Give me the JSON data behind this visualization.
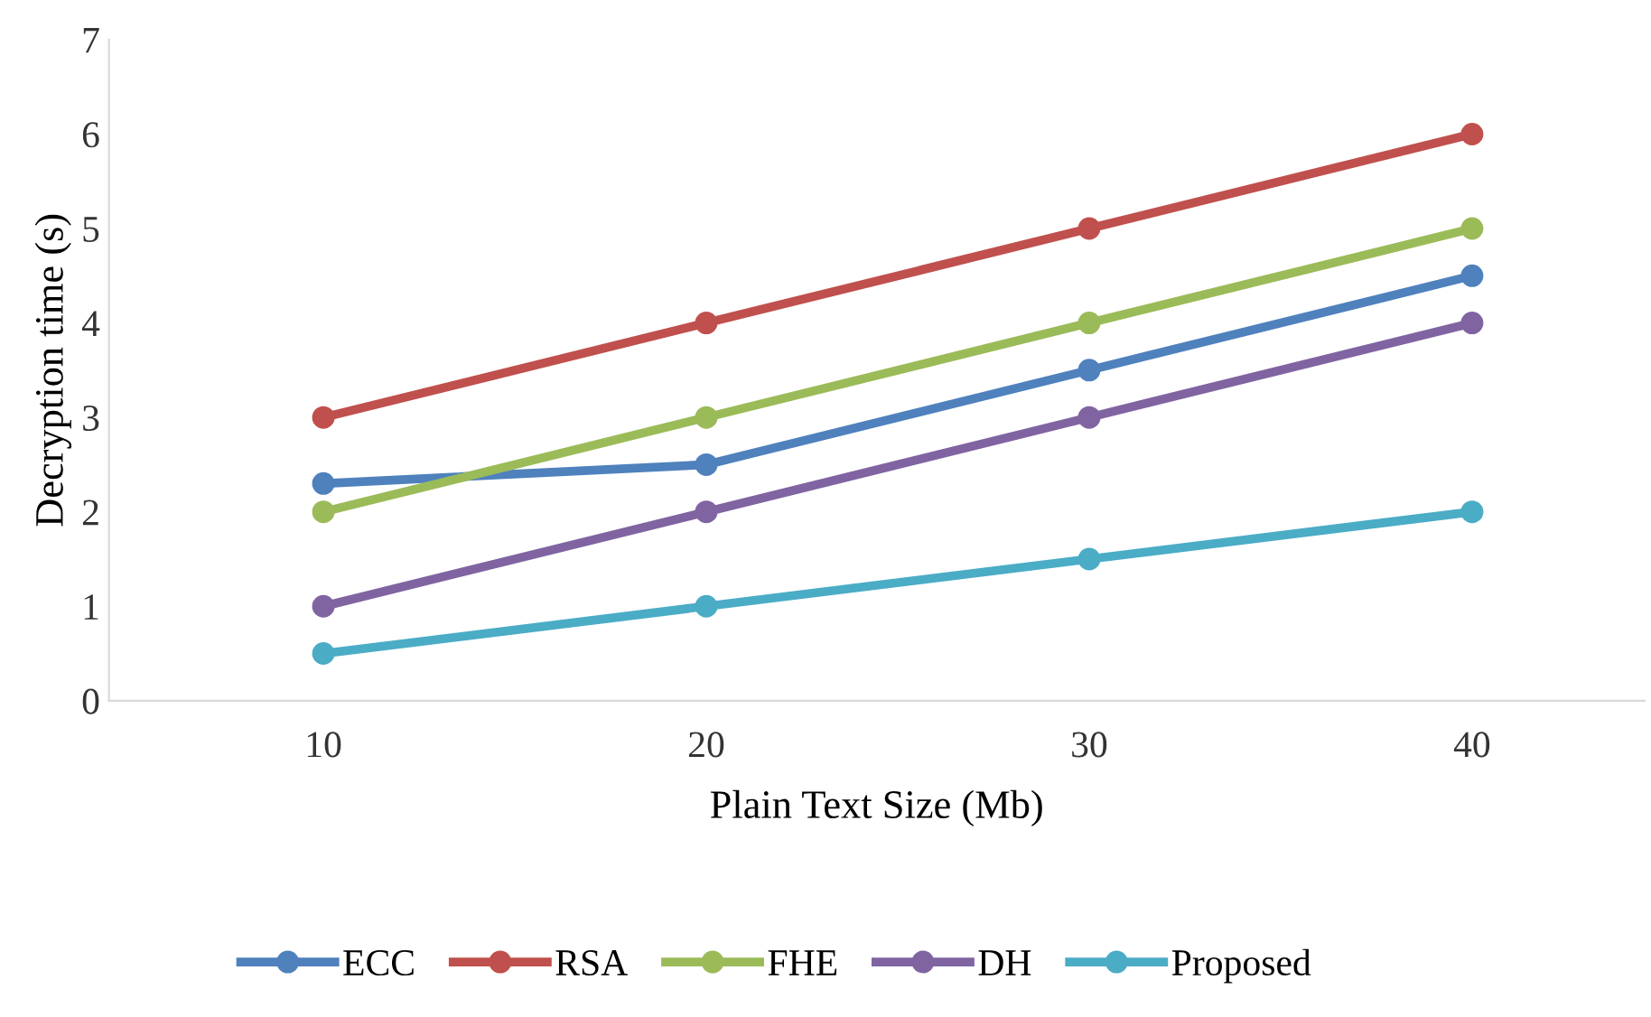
{
  "chart_data": {
    "type": "line",
    "xlabel": "Plain Text Size (Mb)",
    "ylabel": "Decryption time (s)",
    "categories": [
      "10",
      "20",
      "30",
      "40"
    ],
    "series": [
      {
        "name": "ECC",
        "color": "#4f81bd",
        "values": [
          2.3,
          2.5,
          3.5,
          4.5
        ]
      },
      {
        "name": "RSA",
        "color": "#c0504d",
        "values": [
          3,
          4,
          5,
          6
        ]
      },
      {
        "name": "FHE",
        "color": "#9bbb59",
        "values": [
          2,
          3,
          4,
          5
        ]
      },
      {
        "name": "DH",
        "color": "#8064a2",
        "values": [
          1,
          2,
          3,
          4
        ]
      },
      {
        "name": "Proposed",
        "color": "#4bacc6",
        "values": [
          0.5,
          1,
          1.5,
          2
        ]
      }
    ],
    "ylim": [
      0,
      7
    ],
    "yticks": [
      0,
      1,
      2,
      3,
      4,
      5,
      6,
      7
    ],
    "grid": false,
    "legend": "bottom",
    "marker": "circle",
    "line_style": "solid"
  }
}
